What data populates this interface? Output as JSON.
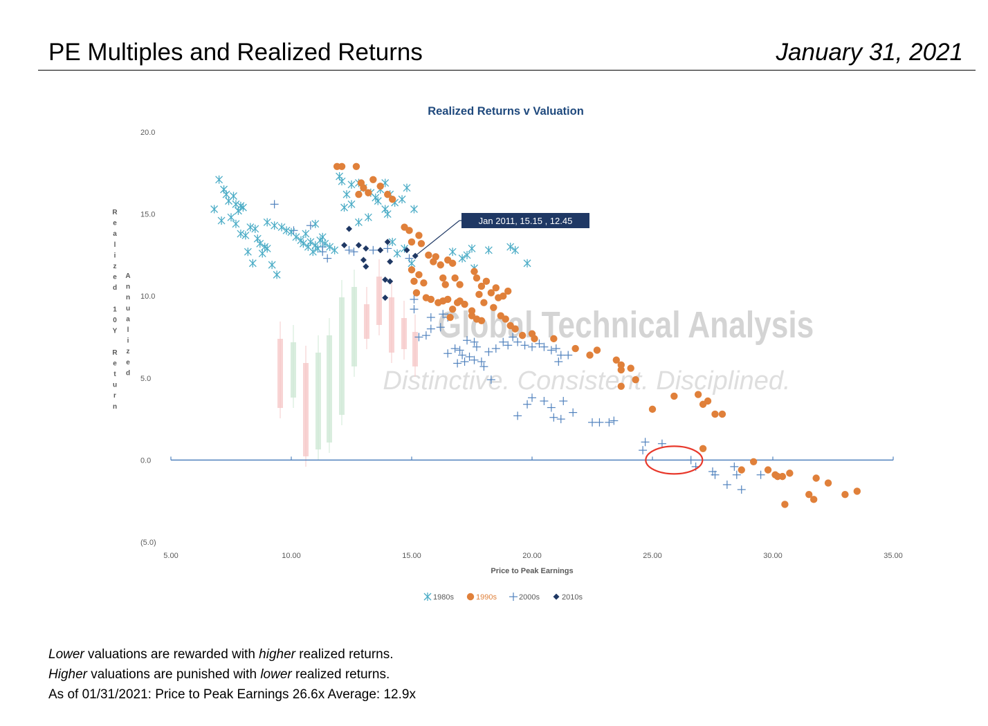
{
  "header": {
    "title": "PE Multiples and Realized Returns",
    "date": "January 31, 2021"
  },
  "chart_data": {
    "type": "scatter",
    "title": "Realized Returns v Valuation",
    "xlabel": "Price to Peak Earnings",
    "ylabel_outer": "Realized 10Y Return",
    "ylabel_inner": "Annualized",
    "xlim": [
      5,
      35
    ],
    "ylim": [
      -5,
      20
    ],
    "x_ticks": [
      "5.00",
      "10.00",
      "15.00",
      "20.00",
      "25.00",
      "30.00",
      "35.00"
    ],
    "y_ticks": [
      "20.0",
      "15.0",
      "10.0",
      "5.0",
      "0.0",
      "(5.0)"
    ],
    "grid": false,
    "legend_position": "bottom",
    "watermark": {
      "line1": "Global Technical Analysis",
      "line2": "Distinctive. Consistent. Disciplined."
    },
    "annotation": {
      "text": "Jan 2011, 15.15 , 12.45",
      "x": 15.15,
      "y": 12.45
    },
    "highlight_circle": {
      "x": 25.9,
      "y": 0.0
    },
    "series": [
      {
        "name": "1980s",
        "marker": "asterisk",
        "color": "#4bacc6",
        "points": [
          [
            6.8,
            15.3
          ],
          [
            7.0,
            17.1
          ],
          [
            7.2,
            16.5
          ],
          [
            7.3,
            16.2
          ],
          [
            7.4,
            15.8
          ],
          [
            7.6,
            16.1
          ],
          [
            7.7,
            15.6
          ],
          [
            7.8,
            15.2
          ],
          [
            7.9,
            15.5
          ],
          [
            8.0,
            15.4
          ],
          [
            7.1,
            14.6
          ],
          [
            7.5,
            14.8
          ],
          [
            7.7,
            14.4
          ],
          [
            7.9,
            13.8
          ],
          [
            8.1,
            13.7
          ],
          [
            8.3,
            14.2
          ],
          [
            8.5,
            14.1
          ],
          [
            8.6,
            13.5
          ],
          [
            8.7,
            13.2
          ],
          [
            8.9,
            13.0
          ],
          [
            8.2,
            12.7
          ],
          [
            8.4,
            12.0
          ],
          [
            8.8,
            12.6
          ],
          [
            9.0,
            12.9
          ],
          [
            9.2,
            11.9
          ],
          [
            9.4,
            11.3
          ],
          [
            9.0,
            14.5
          ],
          [
            9.3,
            14.3
          ],
          [
            9.6,
            14.2
          ],
          [
            9.8,
            14.0
          ],
          [
            10.0,
            13.9
          ],
          [
            10.2,
            13.6
          ],
          [
            10.4,
            13.4
          ],
          [
            10.5,
            13.2
          ],
          [
            10.7,
            13.0
          ],
          [
            10.8,
            13.3
          ],
          [
            11.0,
            13.1
          ],
          [
            11.1,
            12.9
          ],
          [
            10.9,
            12.7
          ],
          [
            11.2,
            13.4
          ],
          [
            11.4,
            13.2
          ],
          [
            11.6,
            13.0
          ],
          [
            11.8,
            12.8
          ],
          [
            10.6,
            13.8
          ],
          [
            11.0,
            14.4
          ],
          [
            11.3,
            13.6
          ],
          [
            12.0,
            17.3
          ],
          [
            12.1,
            17.0
          ],
          [
            12.3,
            16.2
          ],
          [
            12.5,
            16.8
          ],
          [
            12.8,
            16.9
          ],
          [
            13.0,
            16.6
          ],
          [
            13.3,
            16.3
          ],
          [
            13.5,
            16.0
          ],
          [
            13.7,
            16.5
          ],
          [
            13.9,
            16.9
          ],
          [
            14.1,
            16.2
          ],
          [
            14.3,
            15.7
          ],
          [
            14.6,
            15.9
          ],
          [
            14.8,
            16.6
          ],
          [
            15.1,
            15.3
          ],
          [
            13.6,
            15.8
          ],
          [
            13.9,
            15.3
          ],
          [
            14.0,
            15.0
          ],
          [
            12.2,
            15.4
          ],
          [
            12.5,
            15.6
          ],
          [
            13.2,
            14.8
          ],
          [
            12.8,
            14.5
          ],
          [
            14.2,
            13.3
          ],
          [
            14.4,
            12.6
          ],
          [
            14.7,
            12.9
          ],
          [
            15.0,
            12.0
          ],
          [
            16.7,
            12.7
          ],
          [
            17.3,
            12.5
          ],
          [
            17.5,
            12.9
          ],
          [
            17.6,
            11.7
          ],
          [
            18.2,
            12.8
          ],
          [
            19.1,
            13.0
          ],
          [
            19.3,
            12.8
          ],
          [
            19.8,
            12.0
          ],
          [
            17.1,
            12.3
          ]
        ]
      },
      {
        "name": "1990s",
        "marker": "circle",
        "color": "#e0803a",
        "points": [
          [
            11.9,
            17.9
          ],
          [
            12.1,
            17.9
          ],
          [
            12.7,
            17.9
          ],
          [
            12.9,
            16.9
          ],
          [
            13.0,
            16.6
          ],
          [
            13.2,
            16.3
          ],
          [
            13.4,
            17.1
          ],
          [
            13.7,
            16.7
          ],
          [
            14.0,
            16.2
          ],
          [
            14.2,
            15.9
          ],
          [
            12.8,
            16.2
          ],
          [
            14.7,
            14.2
          ],
          [
            14.9,
            14.0
          ],
          [
            15.0,
            13.3
          ],
          [
            15.3,
            13.7
          ],
          [
            15.4,
            13.2
          ],
          [
            15.7,
            12.5
          ],
          [
            15.9,
            12.1
          ],
          [
            16.0,
            12.4
          ],
          [
            16.2,
            11.9
          ],
          [
            16.5,
            12.2
          ],
          [
            16.7,
            12.0
          ],
          [
            15.0,
            11.6
          ],
          [
            15.3,
            11.3
          ],
          [
            15.5,
            10.8
          ],
          [
            15.1,
            10.9
          ],
          [
            15.2,
            10.2
          ],
          [
            15.6,
            9.9
          ],
          [
            15.8,
            9.8
          ],
          [
            16.1,
            9.6
          ],
          [
            16.3,
            9.7
          ],
          [
            16.5,
            9.8
          ],
          [
            16.7,
            9.2
          ],
          [
            16.6,
            8.7
          ],
          [
            16.9,
            9.6
          ],
          [
            17.0,
            9.7
          ],
          [
            17.2,
            9.5
          ],
          [
            17.5,
            9.1
          ],
          [
            17.5,
            8.8
          ],
          [
            17.7,
            8.6
          ],
          [
            17.9,
            8.5
          ],
          [
            16.3,
            11.1
          ],
          [
            16.4,
            10.7
          ],
          [
            16.8,
            11.1
          ],
          [
            17.0,
            10.7
          ],
          [
            17.6,
            11.5
          ],
          [
            17.7,
            11.1
          ],
          [
            17.9,
            10.6
          ],
          [
            18.1,
            10.9
          ],
          [
            18.3,
            10.2
          ],
          [
            18.5,
            10.5
          ],
          [
            18.6,
            9.9
          ],
          [
            18.8,
            10.0
          ],
          [
            17.8,
            10.1
          ],
          [
            18.0,
            9.6
          ],
          [
            18.4,
            9.3
          ],
          [
            18.7,
            8.8
          ],
          [
            19.0,
            10.3
          ],
          [
            18.9,
            8.6
          ],
          [
            19.1,
            8.2
          ],
          [
            19.3,
            8.0
          ],
          [
            19.6,
            7.6
          ],
          [
            20.0,
            7.7
          ],
          [
            20.1,
            7.4
          ],
          [
            20.9,
            7.4
          ],
          [
            21.8,
            6.8
          ],
          [
            22.4,
            6.4
          ],
          [
            22.7,
            6.7
          ],
          [
            23.5,
            6.1
          ],
          [
            23.7,
            5.8
          ],
          [
            23.7,
            5.5
          ],
          [
            24.1,
            5.6
          ],
          [
            24.3,
            4.9
          ],
          [
            23.7,
            4.5
          ],
          [
            25.0,
            3.1
          ],
          [
            25.9,
            3.9
          ],
          [
            26.9,
            4.0
          ],
          [
            27.1,
            3.4
          ],
          [
            27.3,
            3.6
          ],
          [
            27.6,
            2.8
          ],
          [
            27.9,
            2.8
          ],
          [
            27.1,
            0.7
          ],
          [
            29.2,
            -0.1
          ],
          [
            28.7,
            -0.6
          ],
          [
            29.8,
            -0.6
          ],
          [
            30.1,
            -0.9
          ],
          [
            30.4,
            -1.0
          ],
          [
            30.7,
            -0.8
          ],
          [
            30.2,
            -1.0
          ],
          [
            31.8,
            -1.1
          ],
          [
            32.3,
            -1.4
          ],
          [
            31.5,
            -2.1
          ],
          [
            31.7,
            -2.4
          ],
          [
            30.5,
            -2.7
          ],
          [
            33.0,
            -2.1
          ],
          [
            33.5,
            -1.9
          ]
        ]
      },
      {
        "name": "2000s",
        "marker": "plus",
        "color": "#4f81bd",
        "points": [
          [
            9.3,
            15.6
          ],
          [
            10.1,
            14.0
          ],
          [
            10.8,
            14.3
          ],
          [
            11.3,
            13.0
          ],
          [
            11.5,
            12.3
          ],
          [
            11.3,
            12.7
          ],
          [
            12.4,
            12.8
          ],
          [
            12.6,
            12.7
          ],
          [
            13.4,
            12.8
          ],
          [
            14.0,
            12.9
          ],
          [
            14.9,
            12.3
          ],
          [
            15.1,
            9.8
          ],
          [
            15.1,
            9.2
          ],
          [
            15.3,
            7.5
          ],
          [
            15.6,
            7.6
          ],
          [
            15.8,
            8.0
          ],
          [
            16.2,
            8.1
          ],
          [
            15.8,
            8.7
          ],
          [
            16.3,
            8.9
          ],
          [
            16.5,
            8.7
          ],
          [
            16.5,
            6.5
          ],
          [
            16.8,
            6.8
          ],
          [
            17.0,
            6.7
          ],
          [
            17.1,
            6.4
          ],
          [
            17.3,
            7.3
          ],
          [
            17.6,
            7.2
          ],
          [
            17.7,
            6.9
          ],
          [
            17.4,
            6.3
          ],
          [
            17.2,
            6.0
          ],
          [
            16.9,
            5.9
          ],
          [
            17.6,
            6.1
          ],
          [
            17.9,
            6.0
          ],
          [
            18.2,
            6.6
          ],
          [
            18.5,
            6.8
          ],
          [
            18.0,
            5.7
          ],
          [
            18.8,
            7.2
          ],
          [
            19.0,
            7.0
          ],
          [
            19.2,
            7.5
          ],
          [
            19.4,
            7.2
          ],
          [
            19.7,
            7.0
          ],
          [
            20.0,
            6.9
          ],
          [
            20.3,
            7.1
          ],
          [
            20.5,
            6.9
          ],
          [
            20.8,
            6.7
          ],
          [
            21.0,
            6.8
          ],
          [
            21.2,
            6.4
          ],
          [
            21.5,
            6.4
          ],
          [
            21.1,
            6.0
          ],
          [
            18.3,
            4.9
          ],
          [
            19.4,
            2.7
          ],
          [
            19.8,
            3.4
          ],
          [
            20.0,
            3.8
          ],
          [
            20.5,
            3.6
          ],
          [
            20.8,
            3.2
          ],
          [
            20.9,
            2.6
          ],
          [
            21.3,
            3.6
          ],
          [
            21.7,
            2.9
          ],
          [
            21.2,
            2.5
          ],
          [
            22.5,
            2.3
          ],
          [
            22.8,
            2.3
          ],
          [
            23.2,
            2.3
          ],
          [
            23.4,
            2.4
          ],
          [
            24.7,
            1.1
          ],
          [
            24.6,
            0.6
          ],
          [
            25.4,
            1.0
          ],
          [
            26.6,
            0.0
          ],
          [
            26.8,
            -0.4
          ],
          [
            27.5,
            -0.7
          ],
          [
            27.6,
            -0.9
          ],
          [
            28.4,
            -0.4
          ],
          [
            28.5,
            -0.9
          ],
          [
            28.1,
            -1.5
          ],
          [
            28.7,
            -1.8
          ],
          [
            29.5,
            -0.9
          ]
        ]
      },
      {
        "name": "2010s",
        "marker": "diamond",
        "color": "#1f3864",
        "points": [
          [
            12.4,
            14.1
          ],
          [
            12.2,
            13.1
          ],
          [
            12.8,
            13.1
          ],
          [
            13.1,
            12.9
          ],
          [
            13.0,
            12.2
          ],
          [
            13.1,
            11.8
          ],
          [
            13.7,
            12.8
          ],
          [
            14.0,
            13.3
          ],
          [
            14.1,
            12.1
          ],
          [
            13.9,
            11.0
          ],
          [
            14.1,
            10.9
          ],
          [
            13.9,
            9.9
          ],
          [
            14.8,
            12.8
          ],
          [
            15.15,
            12.45
          ]
        ]
      }
    ]
  },
  "notes": {
    "line1_em1": "Lower",
    "line1_t1": " valuations are rewarded with ",
    "line1_em2": "higher",
    "line1_t2": " realized returns.",
    "line2_em1": "Higher",
    "line2_t1": " valuations are punished with ",
    "line2_em2": "lower",
    "line2_t2": " realized returns.",
    "line3": "As of 01/31/2021:   Price to Peak Earnings 26.6x  Average: 12.9x"
  }
}
